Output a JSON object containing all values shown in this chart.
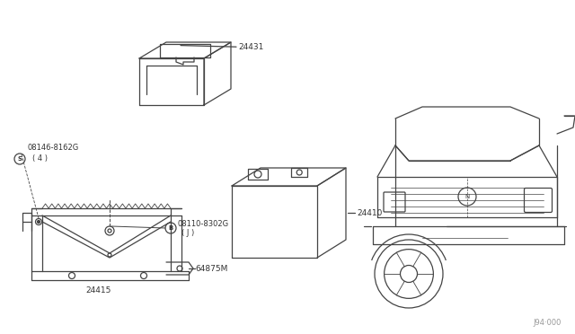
{
  "bg_color": "#ffffff",
  "line_color": "#444444",
  "text_color": "#333333",
  "diagram_number": "J94·000",
  "label_24431": "24431",
  "label_24410": "24410",
  "label_24415": "24415",
  "label_64875M": "64875M",
  "label_S": "S",
  "label_08146": "08146-8162G",
  "label_08146_sub": "( 4 )",
  "label_B": "B",
  "label_08110": "08110-8302G",
  "label_08110_sub": "( J )"
}
